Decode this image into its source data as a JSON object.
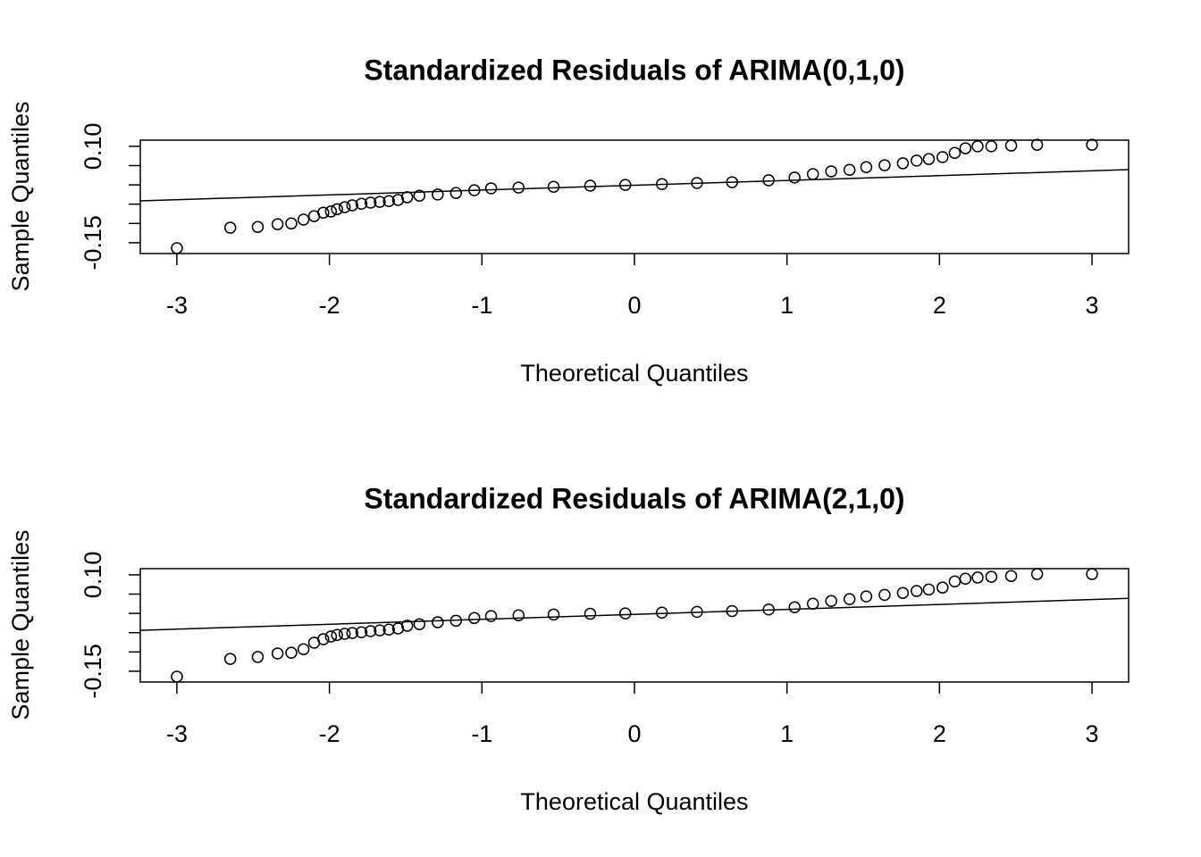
{
  "chart_data": [
    {
      "type": "scatter",
      "title": "Standardized Residuals of ARIMA(0,1,0)",
      "xlabel": "Theoretical Quantiles",
      "ylabel": "Sample Quantiles",
      "color": "#000000",
      "x": [
        -3.0,
        -2.65,
        -2.47,
        -2.34,
        -2.25,
        -2.17,
        -2.1,
        -2.04,
        -1.99,
        -1.95,
        -1.9,
        -1.85,
        -1.79,
        -1.73,
        -1.67,
        -1.61,
        -1.55,
        -1.49,
        -1.41,
        -1.29,
        -1.17,
        -1.05,
        -0.94,
        -0.76,
        -0.53,
        -0.29,
        -0.06,
        0.18,
        0.41,
        0.64,
        0.88,
        1.05,
        1.17,
        1.29,
        1.41,
        1.52,
        1.64,
        1.76,
        1.85,
        1.93,
        2.02,
        2.1,
        2.17,
        2.25,
        2.34,
        2.47,
        2.64,
        3.0
      ],
      "values": [
        -0.164,
        -0.111,
        -0.109,
        -0.102,
        -0.1,
        -0.09,
        -0.081,
        -0.072,
        -0.069,
        -0.063,
        -0.058,
        -0.053,
        -0.049,
        -0.046,
        -0.044,
        -0.042,
        -0.039,
        -0.032,
        -0.028,
        -0.025,
        -0.021,
        -0.014,
        -0.009,
        -0.007,
        -0.005,
        -0.002,
        0.0,
        0.002,
        0.005,
        0.007,
        0.012,
        0.019,
        0.028,
        0.035,
        0.039,
        0.046,
        0.051,
        0.056,
        0.063,
        0.067,
        0.072,
        0.083,
        0.095,
        0.1,
        0.1,
        0.102,
        0.104,
        0.104
      ],
      "reference_line": {
        "intercept": -0.001,
        "slope": 0.0125
      },
      "xlim": [
        -3.24,
        3.24
      ],
      "ylim": [
        -0.178,
        0.116
      ],
      "xticks": [
        -3,
        -2,
        -1,
        0,
        1,
        2,
        3
      ],
      "yticks": [
        {
          "value": 0.1,
          "label": "0.10"
        },
        {
          "value": 0.05,
          "label": null
        },
        {
          "value": 0.0,
          "label": null
        },
        {
          "value": -0.05,
          "label": null
        },
        {
          "value": -0.1,
          "label": null
        },
        {
          "value": -0.15,
          "label": "-0.15"
        }
      ]
    },
    {
      "type": "scatter",
      "title": "Standardized Residuals of ARIMA(2,1,0)",
      "xlabel": "Theoretical Quantiles",
      "ylabel": "Sample Quantiles",
      "color": "#000000",
      "x": [
        -3.0,
        -2.65,
        -2.47,
        -2.34,
        -2.25,
        -2.17,
        -2.1,
        -2.04,
        -1.99,
        -1.95,
        -1.9,
        -1.85,
        -1.79,
        -1.73,
        -1.67,
        -1.61,
        -1.55,
        -1.49,
        -1.41,
        -1.29,
        -1.17,
        -1.05,
        -0.94,
        -0.76,
        -0.53,
        -0.29,
        -0.06,
        0.18,
        0.41,
        0.64,
        0.88,
        1.05,
        1.17,
        1.29,
        1.41,
        1.52,
        1.64,
        1.76,
        1.85,
        1.93,
        2.02,
        2.1,
        2.17,
        2.25,
        2.34,
        2.47,
        2.64,
        3.0
      ],
      "values": [
        -0.164,
        -0.118,
        -0.113,
        -0.104,
        -0.102,
        -0.093,
        -0.076,
        -0.067,
        -0.06,
        -0.056,
        -0.053,
        -0.051,
        -0.049,
        -0.046,
        -0.044,
        -0.042,
        -0.039,
        -0.032,
        -0.028,
        -0.023,
        -0.019,
        -0.012,
        -0.007,
        -0.005,
        -0.003,
        -0.001,
        0.0,
        0.002,
        0.004,
        0.006,
        0.01,
        0.016,
        0.025,
        0.032,
        0.037,
        0.044,
        0.048,
        0.053,
        0.058,
        0.062,
        0.067,
        0.083,
        0.09,
        0.093,
        0.095,
        0.097,
        0.102,
        0.102
      ],
      "reference_line": {
        "intercept": -0.0025,
        "slope": 0.0128
      },
      "xlim": [
        -3.24,
        3.24
      ],
      "ylim": [
        -0.178,
        0.116
      ],
      "xticks": [
        -3,
        -2,
        -1,
        0,
        1,
        2,
        3
      ],
      "yticks": [
        {
          "value": 0.1,
          "label": "0.10"
        },
        {
          "value": 0.05,
          "label": null
        },
        {
          "value": 0.0,
          "label": null
        },
        {
          "value": -0.05,
          "label": null
        },
        {
          "value": -0.1,
          "label": null
        },
        {
          "value": -0.15,
          "label": "-0.15"
        }
      ]
    }
  ]
}
